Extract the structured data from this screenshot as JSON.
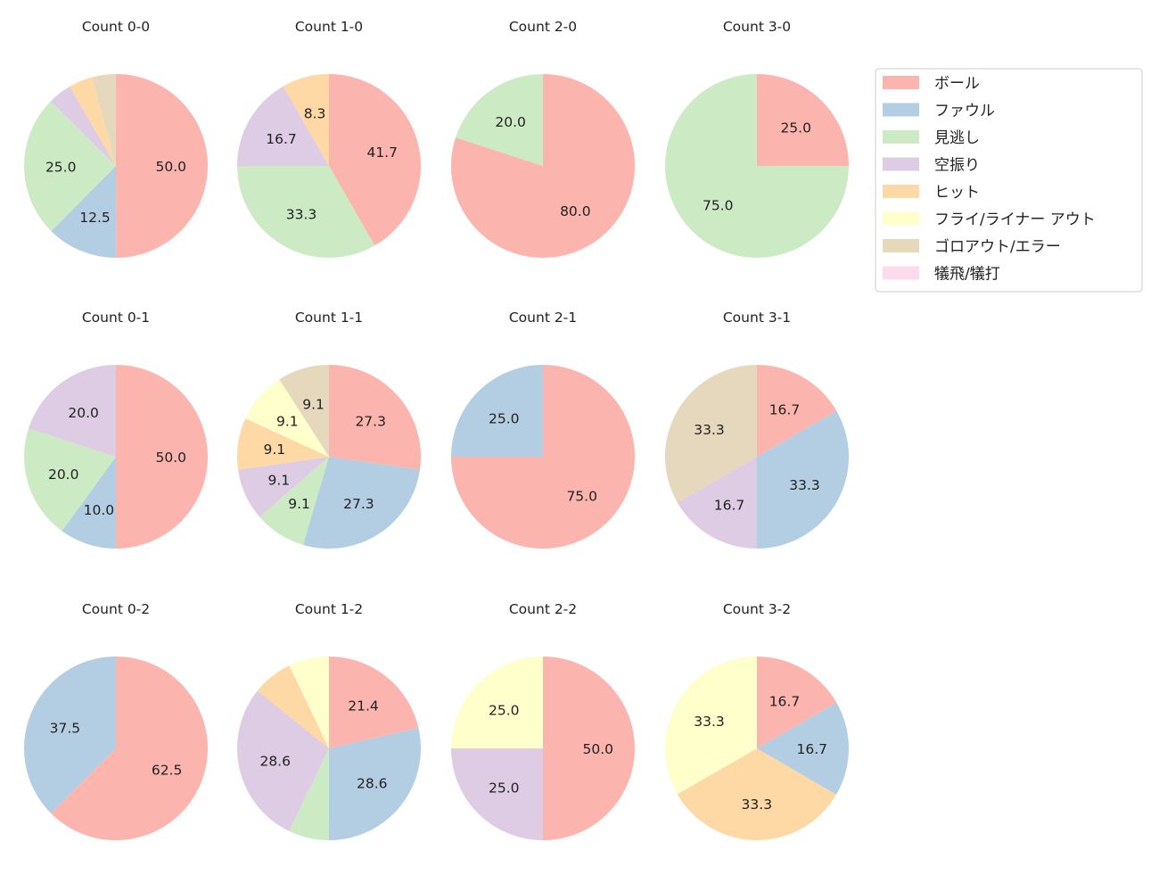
{
  "chart_data": {
    "type": "pie",
    "legend": {
      "placement": "top-right",
      "entries": [
        "ボール",
        "ファウル",
        "見逃し",
        "空振り",
        "ヒット",
        "フライ/ライナー アウト",
        "ゴロアウト/エラー",
        "犠飛/犠打"
      ]
    },
    "colors": [
      "#fbb4ae",
      "#b3cde3",
      "#ccebc5",
      "#decbe4",
      "#fed9a6",
      "#ffffcc",
      "#e5d8bd",
      "#fddaec"
    ],
    "start_angle": "top",
    "direction": "clockwise",
    "charts": [
      {
        "title": "Count 0-0",
        "values": [
          50.0,
          12.5,
          25.0,
          4.2,
          4.2,
          0,
          4.2,
          0
        ]
      },
      {
        "title": "Count 1-0",
        "values": [
          41.7,
          0,
          33.3,
          16.7,
          8.3,
          0,
          0,
          0
        ]
      },
      {
        "title": "Count 2-0",
        "values": [
          80.0,
          0,
          20.0,
          0,
          0,
          0,
          0,
          0
        ]
      },
      {
        "title": "Count 3-0",
        "values": [
          25.0,
          0,
          75.0,
          0,
          0,
          0,
          0,
          0
        ]
      },
      {
        "title": "Count 0-1",
        "values": [
          50.0,
          10.0,
          20.0,
          20.0,
          0,
          0,
          0,
          0
        ]
      },
      {
        "title": "Count 1-1",
        "values": [
          27.3,
          27.3,
          9.1,
          9.1,
          9.1,
          9.1,
          9.1,
          0
        ]
      },
      {
        "title": "Count 2-1",
        "values": [
          75.0,
          25.0,
          0,
          0,
          0,
          0,
          0,
          0
        ]
      },
      {
        "title": "Count 3-1",
        "values": [
          16.7,
          33.3,
          0,
          16.7,
          0,
          0,
          33.3,
          0
        ]
      },
      {
        "title": "Count 0-2",
        "values": [
          62.5,
          37.5,
          0,
          0,
          0,
          0,
          0,
          0
        ]
      },
      {
        "title": "Count 1-2",
        "values": [
          21.4,
          28.6,
          7.1,
          28.6,
          7.1,
          7.1,
          0,
          0
        ]
      },
      {
        "title": "Count 2-2",
        "values": [
          50.0,
          0,
          0,
          25.0,
          0,
          25.0,
          0,
          0
        ]
      },
      {
        "title": "Count 3-2",
        "values": [
          16.7,
          16.7,
          0,
          0,
          33.3,
          33.3,
          0,
          0
        ]
      }
    ]
  }
}
